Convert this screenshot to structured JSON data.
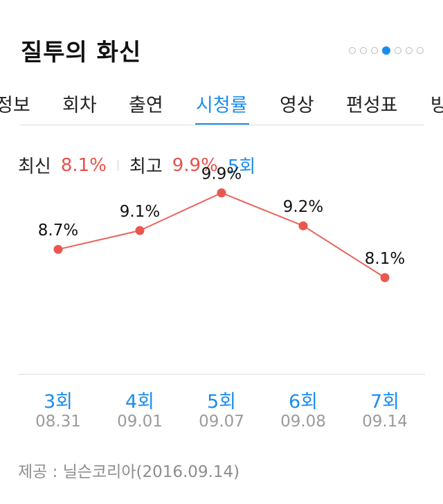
{
  "header": {
    "title": "질투의 화신",
    "page_dots_total": 7,
    "page_dots_active_index": 3
  },
  "tabs": [
    {
      "label": "정보"
    },
    {
      "label": "회차"
    },
    {
      "label": "출연"
    },
    {
      "label": "시청률"
    },
    {
      "label": "영상"
    },
    {
      "label": "편성표"
    },
    {
      "label": "방"
    }
  ],
  "active_tab_index": 3,
  "stats": {
    "latest_label": "최신",
    "latest_value": "8.1%",
    "highest_label": "최고",
    "highest_value": "9.9%",
    "highest_episode": "5회"
  },
  "chart_data": {
    "type": "line",
    "categories": [
      "3회",
      "4회",
      "5회",
      "6회",
      "7회"
    ],
    "dates": [
      "08.31",
      "09.01",
      "09.07",
      "09.08",
      "09.14"
    ],
    "values": [
      8.7,
      9.1,
      9.9,
      9.2,
      8.1
    ],
    "value_labels": [
      "8.7%",
      "9.1%",
      "9.9%",
      "9.2%",
      "8.1%"
    ],
    "title": "",
    "xlabel": "",
    "ylabel": "",
    "ylim": [
      5.6,
      10.6
    ],
    "grid": false,
    "colors": {
      "line": "#e8645d",
      "point": "#e8584f",
      "category": "#1b8cf0",
      "date": "#9b9b9b"
    }
  },
  "footer": {
    "source": "제공 : 닐슨코리아(2016.09.14)"
  }
}
